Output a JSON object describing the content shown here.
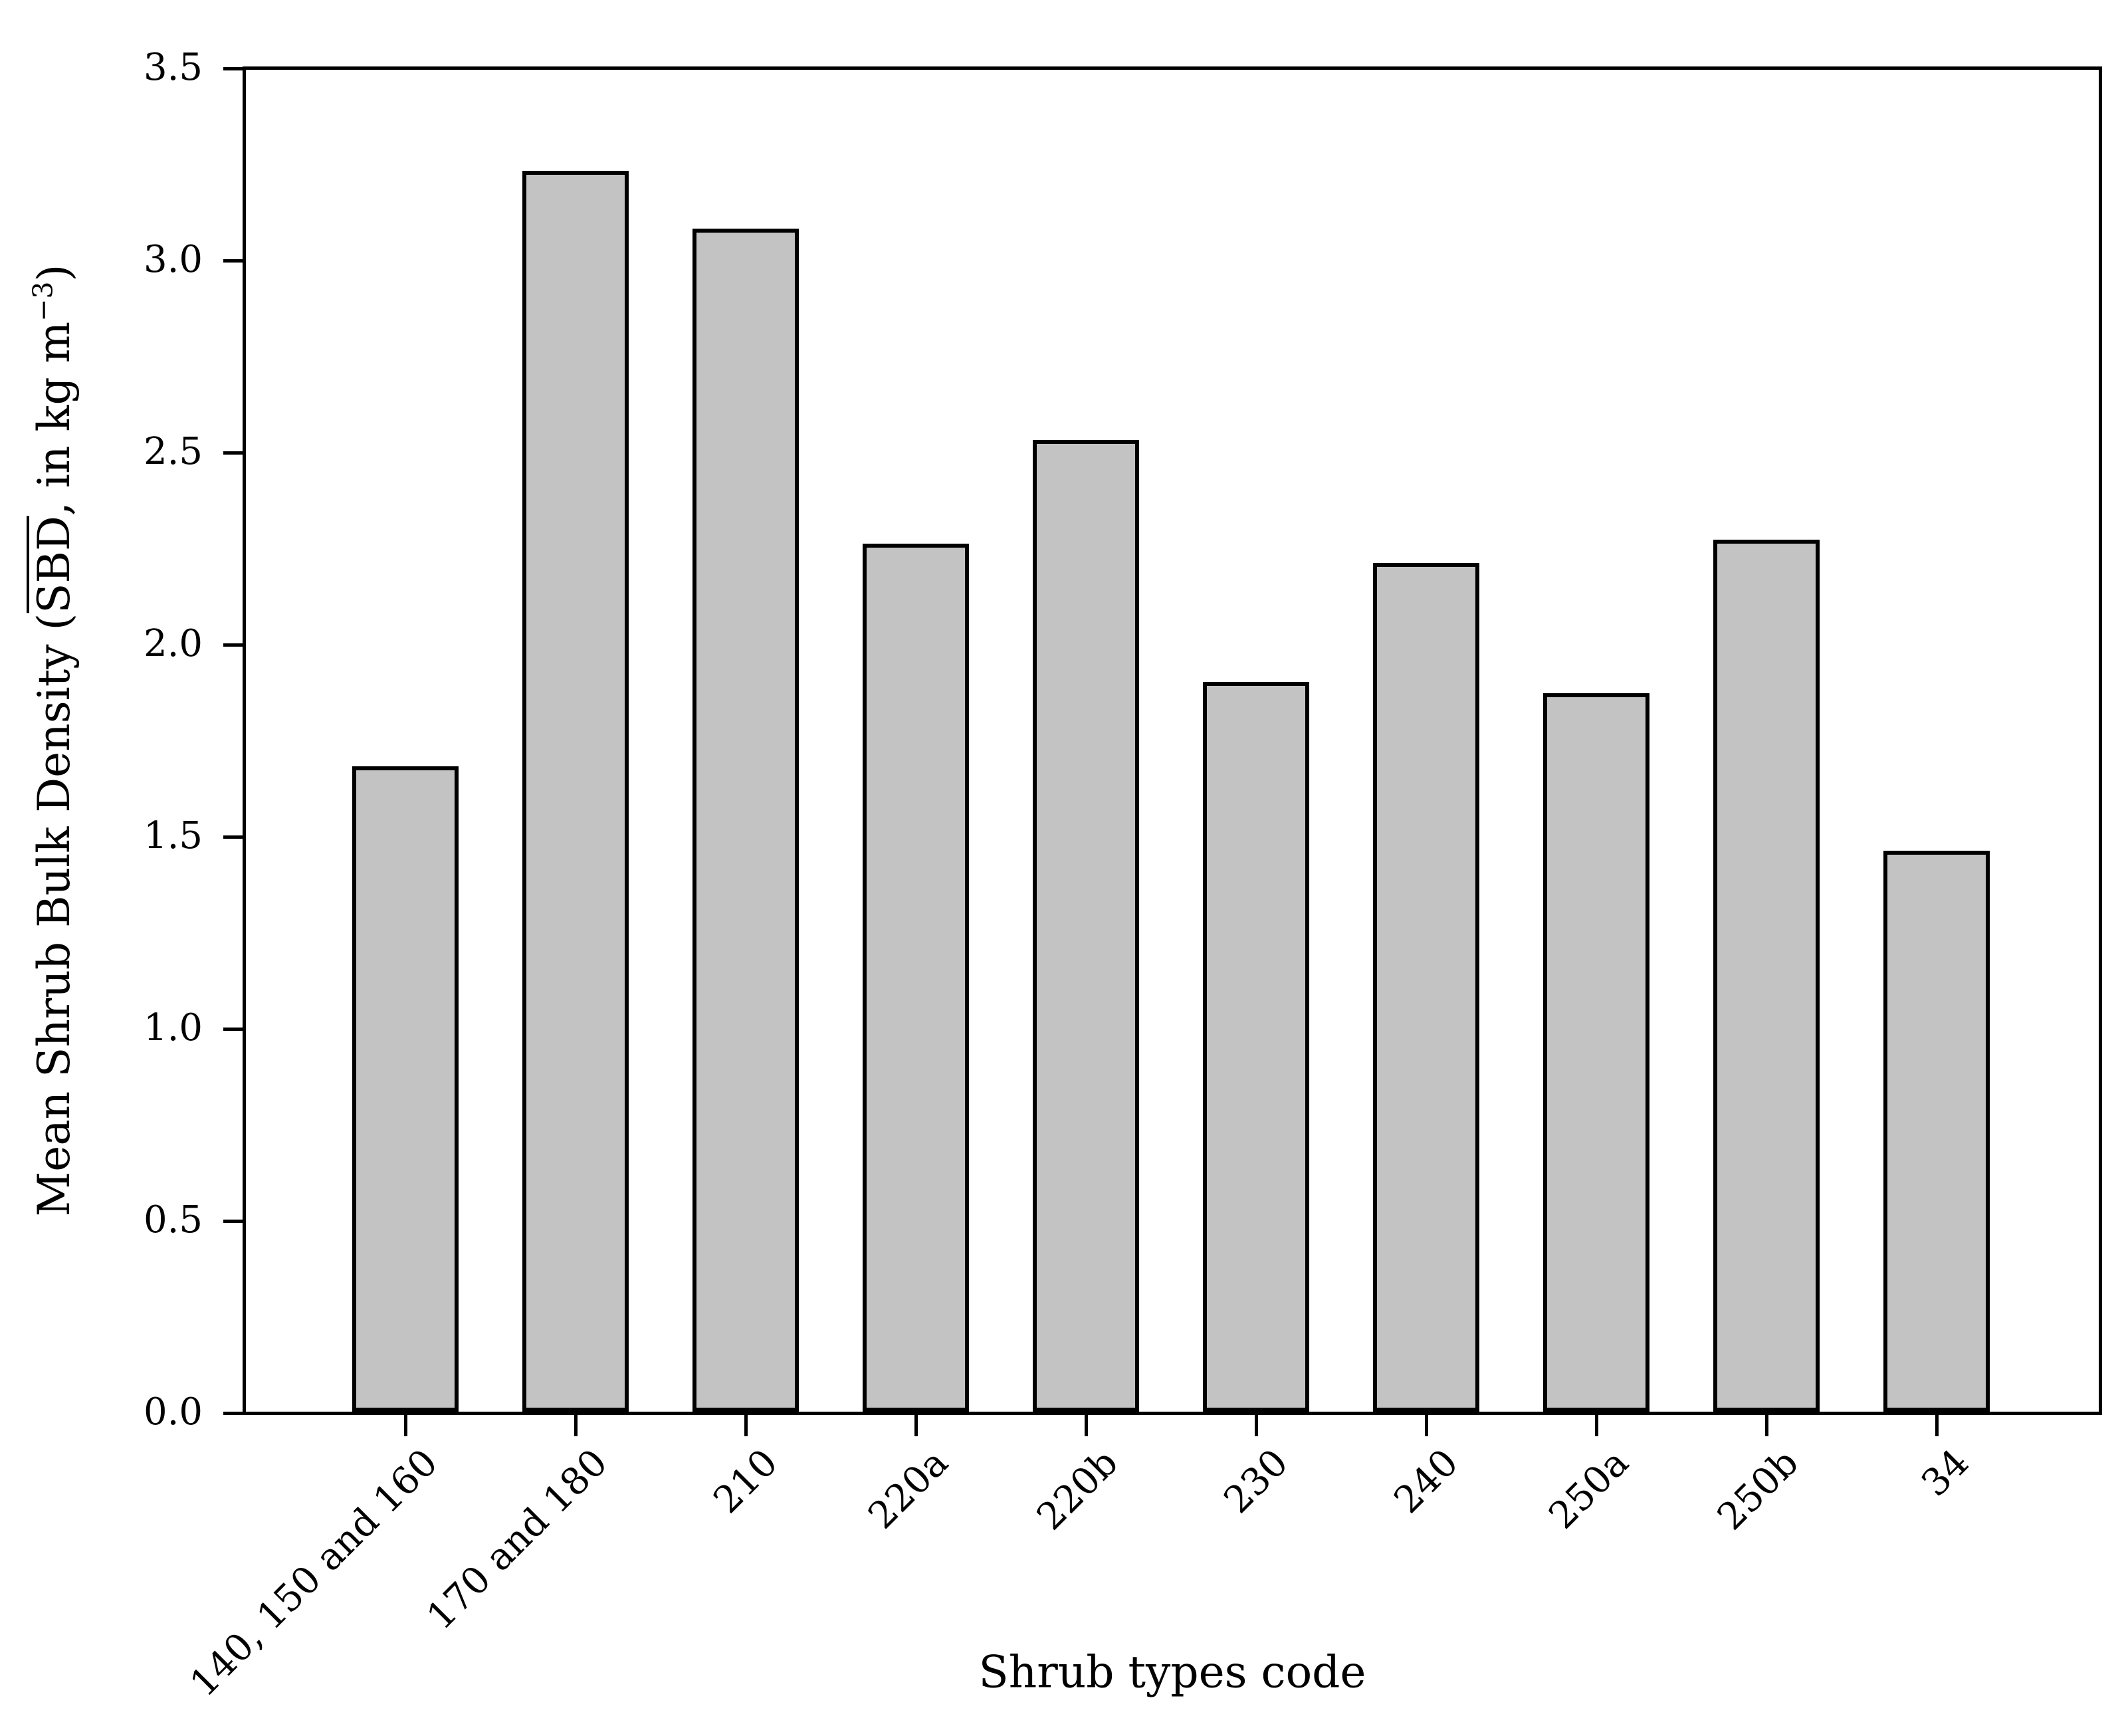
{
  "chart_data": {
    "type": "bar",
    "categories": [
      "140, 150 and 160",
      "170 and 180",
      "210",
      "220a",
      "220b",
      "230",
      "240",
      "250a",
      "250b",
      "34"
    ],
    "values": [
      1.68,
      3.23,
      3.08,
      2.26,
      2.53,
      1.9,
      2.21,
      1.87,
      2.27,
      1.46
    ],
    "title": "",
    "xlabel": "Shrub types code",
    "ylabel": "Mean Shrub Bulk Density (SBD, in kg m−3)",
    "ylabel_parts": {
      "prefix": "Mean Shrub Bulk Density (",
      "overline": "SBD",
      "mid": ", in kg m",
      "sup": "−3",
      "suffix": ")"
    },
    "ylim": [
      0.0,
      3.5
    ],
    "yticks": [
      "0.0",
      "0.5",
      "1.0",
      "1.5",
      "2.0",
      "2.5",
      "3.0",
      "3.5"
    ],
    "grid": false,
    "legend": null,
    "bar_fill_color": "#c2c3c2",
    "bar_edge_color": "#000000",
    "axis_color": "#000000",
    "background_color": "#ffffff"
  }
}
